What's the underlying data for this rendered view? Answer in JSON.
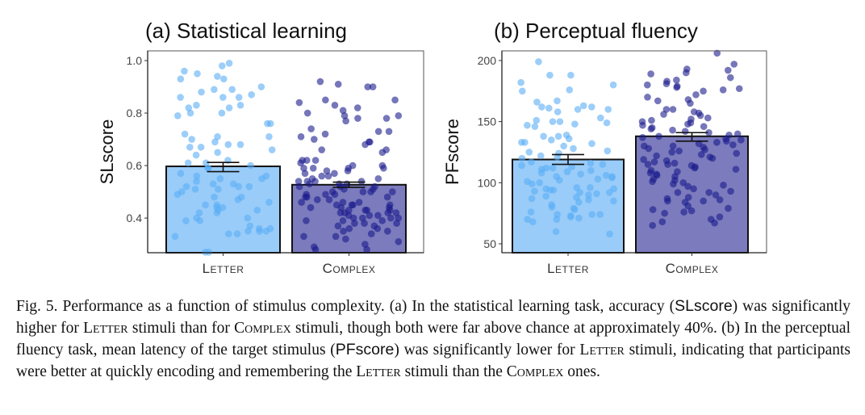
{
  "chart_data": [
    {
      "type": "bar",
      "title": "(a) Statistical learning",
      "ylabel": "SLscore",
      "categories": [
        "Letter",
        "Complex"
      ],
      "values": [
        0.597,
        0.527
      ],
      "error": [
        [
          0.577,
          0.612
        ],
        [
          0.517,
          0.537
        ]
      ],
      "ylim": [
        0.268,
        1.037
      ],
      "yticks": [
        0.4,
        0.6,
        0.8,
        1.0
      ],
      "ytick_labels": [
        "0.4",
        "0.6",
        "0.8",
        "1.0"
      ],
      "grid": false,
      "colors": {
        "bars": [
          "#99ccf9",
          "#7b7bbd"
        ],
        "points": [
          "#5aaef5",
          "#1a1a8c"
        ]
      },
      "points": [
        [
          0.98,
          0.99,
          0.96,
          0.95,
          0.94,
          0.93,
          0.93,
          0.9,
          0.89,
          0.89,
          0.88,
          0.87,
          0.86,
          0.86,
          0.86,
          0.83,
          0.83,
          0.82,
          0.82,
          0.8,
          0.8,
          0.79,
          0.76,
          0.76,
          0.72,
          0.71,
          0.71,
          0.7,
          0.69,
          0.68,
          0.68,
          0.67,
          0.67,
          0.66,
          0.65,
          0.64,
          0.62,
          0.61,
          0.61,
          0.6,
          0.59,
          0.59,
          0.57,
          0.56,
          0.56,
          0.55,
          0.55,
          0.54,
          0.53,
          0.53,
          0.52,
          0.52,
          0.52,
          0.51,
          0.51,
          0.5,
          0.49,
          0.48,
          0.48,
          0.47,
          0.46,
          0.45,
          0.45,
          0.44,
          0.44,
          0.43,
          0.43,
          0.42,
          0.42,
          0.4,
          0.4,
          0.39,
          0.39,
          0.37,
          0.36,
          0.36,
          0.35,
          0.35,
          0.35,
          0.34,
          0.34,
          0.33,
          0.27,
          0.27
        ],
        [
          0.92,
          0.91,
          0.9,
          0.9,
          0.85,
          0.85,
          0.84,
          0.83,
          0.82,
          0.81,
          0.8,
          0.79,
          0.79,
          0.78,
          0.78,
          0.77,
          0.74,
          0.73,
          0.73,
          0.72,
          0.71,
          0.7,
          0.69,
          0.69,
          0.68,
          0.66,
          0.66,
          0.65,
          0.62,
          0.62,
          0.62,
          0.61,
          0.6,
          0.6,
          0.59,
          0.59,
          0.59,
          0.59,
          0.58,
          0.58,
          0.57,
          0.57,
          0.56,
          0.56,
          0.55,
          0.55,
          0.54,
          0.54,
          0.54,
          0.54,
          0.53,
          0.53,
          0.53,
          0.52,
          0.52,
          0.52,
          0.51,
          0.51,
          0.5,
          0.5,
          0.5,
          0.5,
          0.49,
          0.49,
          0.49,
          0.48,
          0.48,
          0.48,
          0.47,
          0.47,
          0.46,
          0.46,
          0.46,
          0.45,
          0.45,
          0.45,
          0.45,
          0.44,
          0.44,
          0.44,
          0.43,
          0.43,
          0.43,
          0.43,
          0.42,
          0.42,
          0.42,
          0.42,
          0.41,
          0.41,
          0.41,
          0.4,
          0.4,
          0.4,
          0.4,
          0.39,
          0.39,
          0.39,
          0.38,
          0.38,
          0.38,
          0.37,
          0.37,
          0.36,
          0.36,
          0.35,
          0.35,
          0.34,
          0.33,
          0.33,
          0.32,
          0.31,
          0.3,
          0.29,
          0.28,
          0.28
        ]
      ]
    },
    {
      "type": "bar",
      "title": "(b) Perceptual fluency",
      "ylabel": "PFscore",
      "categories": [
        "Letter",
        "Complex"
      ],
      "values": [
        119,
        138
      ],
      "error": [
        [
          115,
          123
        ],
        [
          134,
          141
        ]
      ],
      "ylim": [
        42.7,
        207.9
      ],
      "yticks": [
        50,
        100,
        150,
        200
      ],
      "ytick_labels": [
        "50",
        "100",
        "150",
        "200"
      ],
      "grid": false,
      "colors": {
        "bars": [
          "#99ccf9",
          "#7b7bbd"
        ],
        "points": [
          "#5aaef5",
          "#1a1a8c"
        ]
      },
      "points": [
        [
          199,
          188,
          188,
          182,
          180,
          176,
          175,
          167,
          166,
          163,
          162,
          162,
          161,
          160,
          160,
          158,
          153,
          151,
          150,
          150,
          149,
          148,
          147,
          146,
          139,
          138,
          138,
          136,
          135,
          133,
          133,
          132,
          130,
          128,
          126,
          125,
          124,
          122,
          121,
          120,
          117,
          116,
          115,
          114,
          113,
          112,
          112,
          111,
          110,
          109,
          108,
          107,
          106,
          105,
          105,
          104,
          103,
          102,
          101,
          100,
          99,
          96,
          96,
          95,
          95,
          94,
          94,
          93,
          92,
          92,
          91,
          90,
          89,
          88,
          87,
          86,
          85,
          84,
          82,
          80,
          79,
          78,
          76,
          74,
          74,
          74,
          73,
          72,
          71,
          70,
          70,
          68,
          60,
          58
        ],
        [
          206,
          197,
          193,
          192,
          190,
          189,
          186,
          184,
          183,
          181,
          180,
          179,
          178,
          177,
          176,
          175,
          172,
          170,
          168,
          167,
          165,
          160,
          160,
          158,
          157,
          156,
          155,
          153,
          152,
          151,
          150,
          149,
          148,
          147,
          146,
          145,
          144,
          143,
          142,
          141,
          140,
          139,
          138,
          137,
          136,
          135,
          134,
          133,
          132,
          131,
          130,
          130,
          129,
          128,
          127,
          126,
          125,
          124,
          123,
          122,
          121,
          120,
          119,
          118,
          117,
          116,
          115,
          115,
          114,
          113,
          112,
          111,
          110,
          109,
          108,
          107,
          106,
          105,
          103,
          102,
          101,
          100,
          99,
          98,
          97,
          95,
          93,
          92,
          92,
          90,
          88,
          87,
          86,
          85,
          85,
          84,
          81,
          79,
          78,
          77,
          76,
          75,
          72,
          70,
          68,
          67,
          65
        ]
      ]
    }
  ],
  "caption": {
    "fig_label": "Fig. 5.",
    "p1": " Performance as a function of stimulus complexity. (a) In the statistical learning task, accuracy (",
    "slscore": "SLscore",
    "p2": ") was significantly higher for ",
    "letter1": "Letter",
    "p3": " stimuli than for ",
    "complex1": "Complex",
    "p4": " stimuli, though both were far above chance at approximately 40%. (b) In the perceptual fluency task, mean latency of the target stimulus (",
    "pfscore": "PFscore",
    "p5": ") was significantly lower for ",
    "letter2": "Letter",
    "p6": " stimuli, indicating that participants were better at quickly encoding and remembering the ",
    "letter3": "Letter",
    "p7": " stimuli than the ",
    "complex2": "Complex",
    "p8": " ones."
  }
}
